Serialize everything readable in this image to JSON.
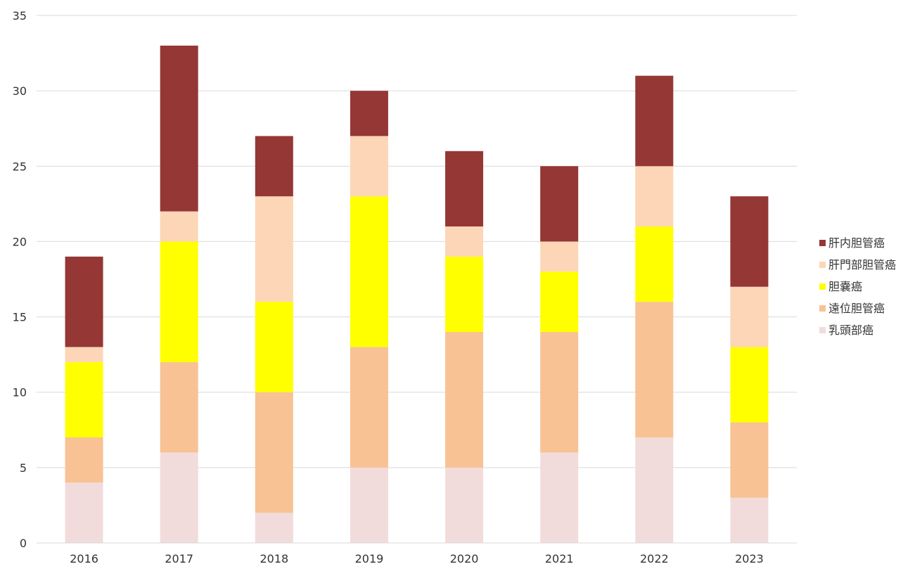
{
  "chart_data": {
    "type": "bar",
    "stacked": true,
    "categories": [
      "2016",
      "2017",
      "2018",
      "2019",
      "2020",
      "2021",
      "2022",
      "2023"
    ],
    "series": [
      {
        "name": "乳頭部癌",
        "color": "#f2dcdb",
        "values": [
          4,
          6,
          2,
          5,
          5,
          6,
          7,
          3
        ]
      },
      {
        "name": "遠位胆管癌",
        "color": "#f8c294",
        "values": [
          3,
          6,
          8,
          8,
          9,
          8,
          9,
          5
        ]
      },
      {
        "name": "胆嚢癌",
        "color": "#ffff00",
        "values": [
          5,
          8,
          6,
          10,
          5,
          4,
          5,
          5
        ]
      },
      {
        "name": "肝門部胆管癌",
        "color": "#fcd6b6",
        "values": [
          1,
          2,
          7,
          4,
          2,
          2,
          4,
          4
        ]
      },
      {
        "name": "肝内胆管癌",
        "color": "#953735",
        "values": [
          6,
          11,
          4,
          3,
          5,
          5,
          6,
          6
        ]
      }
    ],
    "legend_order": [
      "肝内胆管癌",
      "肝門部胆管癌",
      "胆嚢癌",
      "遠位胆管癌",
      "乳頭部癌"
    ],
    "ylim": [
      0,
      35
    ],
    "yticks": [
      0,
      5,
      10,
      15,
      20,
      25,
      30,
      35
    ],
    "grid": true,
    "legend_position": "right",
    "title": "",
    "xlabel": "",
    "ylabel": ""
  }
}
